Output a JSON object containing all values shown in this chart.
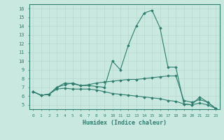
{
  "xlabel": "Humidex (Indice chaleur)",
  "ylabel": "",
  "background_color": "#c8e8e0",
  "grid_color": "#b8d8d0",
  "line_color": "#2e7d6e",
  "xlim": [
    -0.5,
    23.5
  ],
  "ylim": [
    4.5,
    16.5
  ],
  "xticks": [
    0,
    1,
    2,
    3,
    4,
    5,
    6,
    7,
    8,
    9,
    10,
    11,
    12,
    13,
    14,
    15,
    16,
    17,
    18,
    19,
    20,
    21,
    22,
    23
  ],
  "yticks": [
    5,
    6,
    7,
    8,
    9,
    10,
    11,
    12,
    13,
    14,
    15,
    16
  ],
  "series": [
    [
      6.5,
      6.1,
      6.2,
      7.0,
      7.3,
      7.5,
      7.2,
      7.2,
      7.1,
      7.0,
      10.0,
      9.0,
      11.8,
      14.0,
      15.5,
      15.8,
      13.8,
      9.3,
      9.3,
      5.1,
      5.0,
      5.9,
      5.3,
      4.6
    ],
    [
      6.5,
      6.1,
      6.2,
      7.0,
      7.5,
      7.4,
      7.2,
      7.3,
      7.5,
      7.6,
      7.7,
      7.8,
      7.9,
      7.9,
      8.0,
      8.1,
      8.2,
      8.3,
      8.3,
      5.5,
      5.3,
      5.6,
      5.3,
      4.6
    ],
    [
      6.5,
      6.1,
      6.2,
      6.8,
      6.9,
      6.8,
      6.8,
      6.8,
      6.7,
      6.5,
      6.3,
      6.2,
      6.1,
      6.0,
      5.9,
      5.8,
      5.7,
      5.5,
      5.4,
      5.1,
      5.0,
      5.2,
      5.0,
      4.6
    ]
  ]
}
